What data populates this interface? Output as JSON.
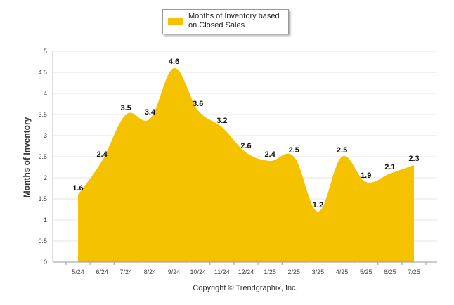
{
  "chart_data": {
    "type": "area",
    "categories": [
      "5/24",
      "6/24",
      "7/24",
      "8/24",
      "9/24",
      "10/24",
      "11/24",
      "12/24",
      "1/25",
      "2/25",
      "3/25",
      "4/25",
      "5/25",
      "6/25",
      "7/25"
    ],
    "series": [
      {
        "name": "Months of Inventory based on Closed Sales",
        "values": [
          1.6,
          2.4,
          3.5,
          3.4,
          4.6,
          3.6,
          3.2,
          2.6,
          2.4,
          2.5,
          1.2,
          2.5,
          1.9,
          2.1,
          2.3
        ],
        "color": "#F5C200"
      }
    ],
    "data_labels": [
      "1.6",
      "2.4",
      "3.5",
      "3.4",
      "4.6",
      "3.6",
      "3.2",
      "2.6",
      "2.4",
      "2.5",
      "1.2",
      "2.5",
      "1.9",
      "2.1",
      "2.3"
    ],
    "ylabel": "Months of Inventory",
    "xlabel": "",
    "ylim": [
      0,
      5
    ],
    "yticks": [
      "0",
      "0.5",
      "1",
      "1.5",
      "2",
      "2.5",
      "3",
      "3.5",
      "4",
      "4.5",
      "5"
    ],
    "grid": true,
    "legend_position": "top-center"
  },
  "legend": {
    "label": "Months of Inventory based on Closed Sales",
    "color": "#F5C200"
  },
  "footer": {
    "copyright": "Copyright © Trendgraphix, Inc."
  }
}
